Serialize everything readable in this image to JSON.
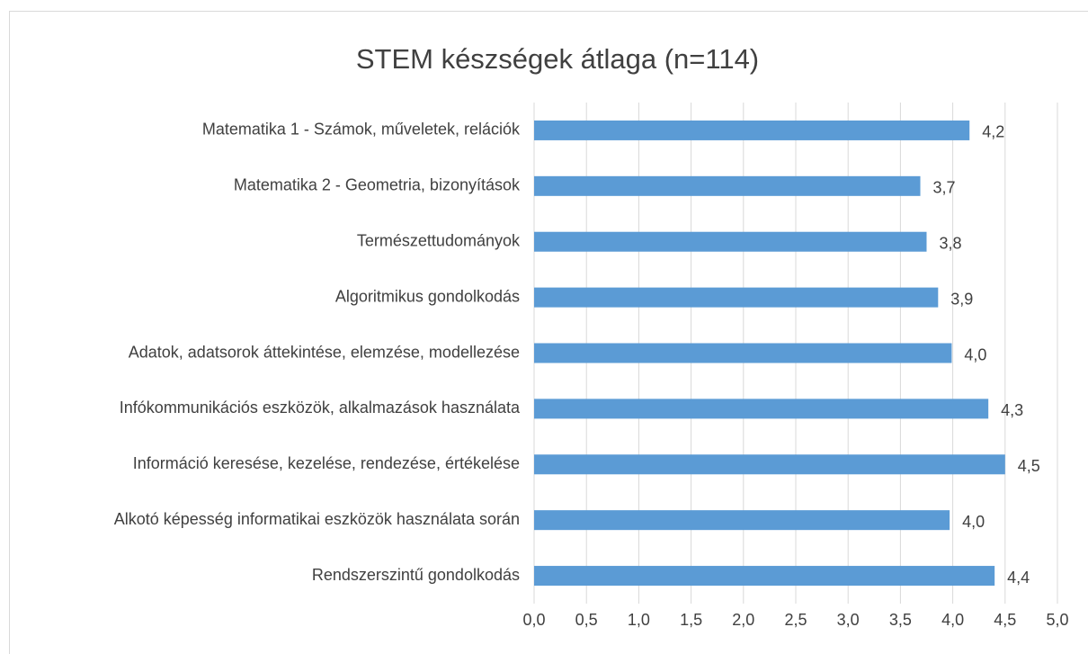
{
  "chart_data": {
    "type": "bar",
    "orientation": "horizontal",
    "title": "STEM készségek átlaga (n=114)",
    "categories": [
      "Matematika 1 - Számok, műveletek, relációk",
      "Matematika 2 - Geometria, bizonyítások",
      "Természettudományok",
      "Algoritmikus gondolkodás",
      "Adatok, adatsorok áttekintése, elemzése, modellezése",
      "Infókommunikációs eszközök, alkalmazások használata",
      "Információ keresése, kezelése, rendezése, értékelése",
      "Alkotó képesség informatikai eszközök használata során",
      "Rendszerszintű gondolkodás"
    ],
    "values": [
      4.16,
      3.69,
      3.75,
      3.86,
      3.99,
      4.34,
      4.5,
      3.97,
      4.4
    ],
    "value_labels": [
      "4,2",
      "3,7",
      "3,8",
      "3,9",
      "4,0",
      "4,3",
      "4,5",
      "4,0",
      "4,4"
    ],
    "color": "#5b9bd5",
    "xlim": [
      0,
      5
    ],
    "xticks": [
      {
        "value": 0,
        "label": "0,0"
      },
      {
        "value": 0.5,
        "label": "0,5"
      },
      {
        "value": 1,
        "label": "1,0"
      },
      {
        "value": 1.5,
        "label": "1,5"
      },
      {
        "value": 2,
        "label": "2,0"
      },
      {
        "value": 2.5,
        "label": "2,5"
      },
      {
        "value": 3,
        "label": "3,0"
      },
      {
        "value": 3.5,
        "label": "3,5"
      },
      {
        "value": 4,
        "label": "4,0"
      },
      {
        "value": 4.5,
        "label": "4,5"
      },
      {
        "value": 5,
        "label": "5,0"
      }
    ],
    "grid": true
  }
}
